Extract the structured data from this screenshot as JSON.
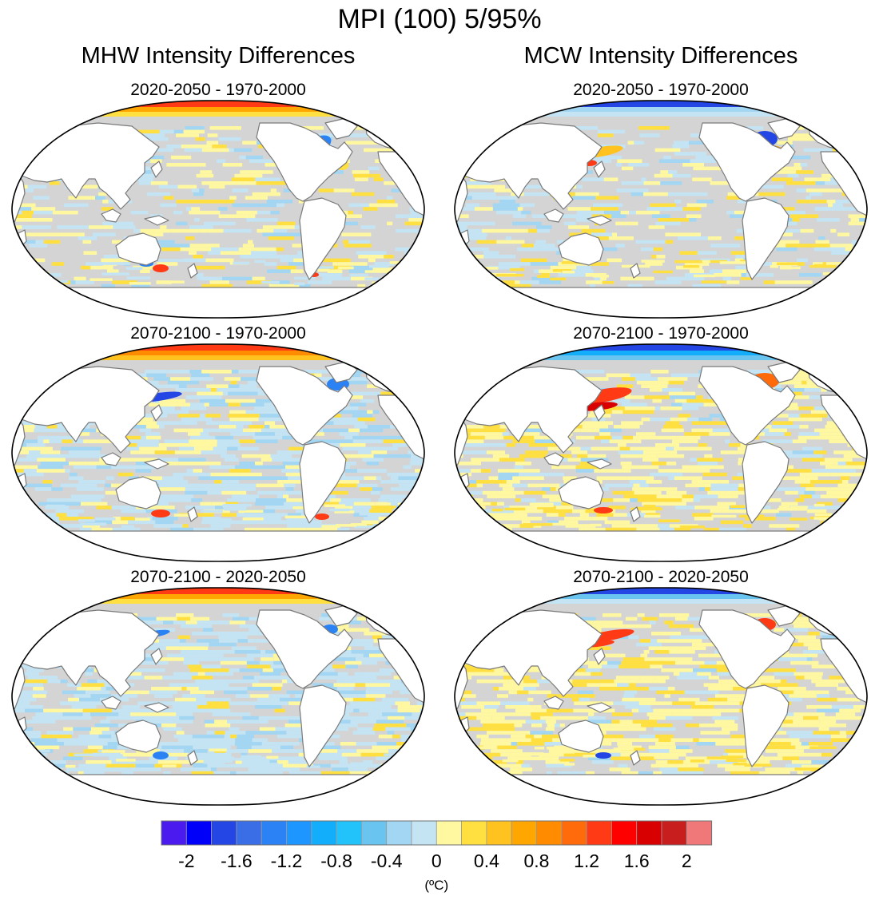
{
  "figure": {
    "title": "MPI (100) 5/95%",
    "columns": [
      {
        "title": "MHW Intensity Differences"
      },
      {
        "title": "MCW Intensity Differences"
      }
    ],
    "panels": [
      {
        "column": "MHW",
        "title": "2020-2050 - 1970-2000"
      },
      {
        "column": "MCW",
        "title": "2020-2050 - 1970-2000"
      },
      {
        "column": "MHW",
        "title": "2070-2100 - 1970-2000"
      },
      {
        "column": "MCW",
        "title": "2070-2100 - 1970-2000"
      },
      {
        "column": "MHW",
        "title": "2070-2100 - 2020-2050"
      },
      {
        "column": "MCW",
        "title": "2070-2100 - 2020-2050"
      }
    ]
  },
  "chart_data": {
    "type": "heatmap",
    "projection": "Robinson (Pacific-centered)",
    "variable": "Marine heatwave / cold-spell intensity difference",
    "units": "(ºC)",
    "colorbar": {
      "label": "(ºC)",
      "ticks": [
        "-2",
        "-1.6",
        "-1.2",
        "-0.8",
        "-0.4",
        "0",
        "0.4",
        "0.8",
        "1.2",
        "1.6",
        "2"
      ],
      "colors": [
        "#4a1aee",
        "#0000fa",
        "#2346e4",
        "#3a6ee6",
        "#2b82f5",
        "#1e96ff",
        "#13aefb",
        "#22c3fa",
        "#6ac4f0",
        "#a2d6f2",
        "#c4e4f4",
        "#fff8a0",
        "#ffe040",
        "#ffc21f",
        "#ffa600",
        "#ff8c00",
        "#ff6a0a",
        "#ff3a14",
        "#ff0000",
        "#d80000",
        "#c81e1e",
        "#f07878"
      ],
      "not_significant_color": "#d4d4d4"
    }
  }
}
